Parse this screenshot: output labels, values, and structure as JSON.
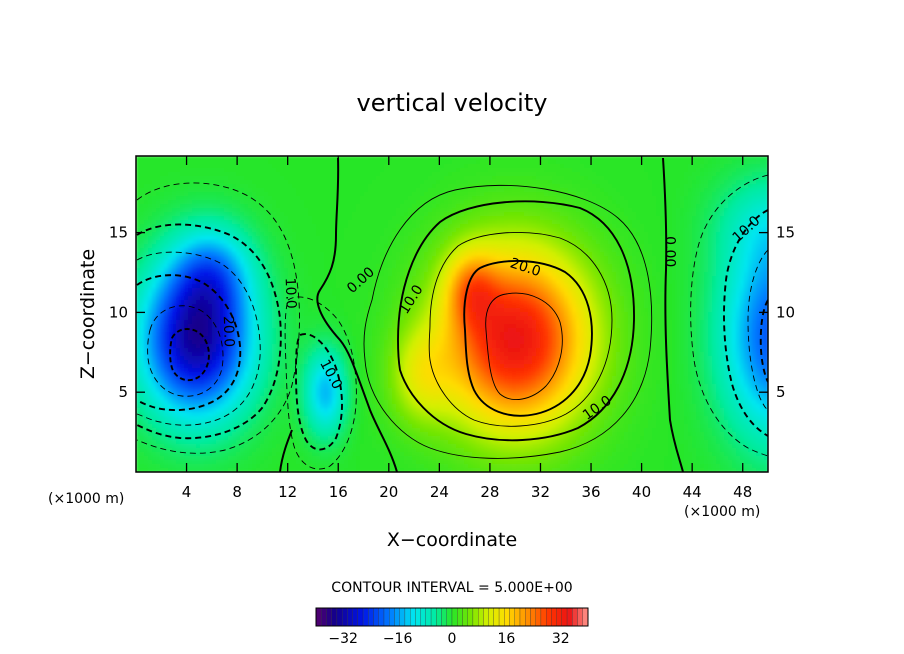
{
  "chart_data": {
    "type": "heatmap",
    "title": "vertical velocity",
    "xlabel": "X−coordinate",
    "ylabel": "Z−coordinate",
    "x_unit": "(×1000 m)",
    "y_unit": "(×1000 m)",
    "xlim": [
      0,
      50
    ],
    "ylim": [
      0,
      19.8
    ],
    "x_ticks": [
      4,
      8,
      12,
      16,
      20,
      24,
      28,
      32,
      36,
      40,
      44,
      48
    ],
    "y_ticks": [
      5,
      10,
      15
    ],
    "contour_interval_text": "CONTOUR INTERVAL = 5.000E+00",
    "contour_interval": 5,
    "colorbar": {
      "min": -40,
      "max": 40,
      "ticks": [
        -32,
        -16,
        0,
        16,
        32
      ],
      "tick_labels": [
        "−32",
        "−16",
        "0",
        "16",
        "32"
      ]
    },
    "contour_labels": [
      {
        "text": "0.00",
        "x": 17.8,
        "y": 12.0,
        "angle": -42
      },
      {
        "text": "0.00",
        "x": 42.2,
        "y": 13.8,
        "angle": 90
      },
      {
        "text": "10.0",
        "x": 21.8,
        "y": 10.8,
        "angle": -58
      },
      {
        "text": "20.0",
        "x": 30.8,
        "y": 12.8,
        "angle": 18
      },
      {
        "text": "10.0",
        "x": 36.5,
        "y": 4.0,
        "angle": -35
      },
      {
        "text": "10.0",
        "x": 12.2,
        "y": 11.2,
        "angle": 88
      },
      {
        "text": "20.0",
        "x": 7.3,
        "y": 8.8,
        "angle": 88
      },
      {
        "text": "10.0",
        "x": 15.4,
        "y": 6.1,
        "angle": 62
      },
      {
        "text": "10.0",
        "x": 48.3,
        "y": 15.2,
        "angle": -42
      }
    ],
    "field_centers": [
      {
        "kind": "updraft",
        "x": 30.0,
        "y": 8.3,
        "peak": 34
      },
      {
        "kind": "updraft-lobe",
        "x": 26.5,
        "y": 11.0,
        "peak": 15
      },
      {
        "kind": "downdraft",
        "x": 5.0,
        "y": 8.3,
        "peak": -35
      },
      {
        "kind": "downdraft-lobe",
        "x": 6.0,
        "y": 12.0,
        "peak": -12
      },
      {
        "kind": "downdraft",
        "x": 15.0,
        "y": 5.0,
        "peak": -16
      },
      {
        "kind": "downdraft",
        "x": 50.0,
        "y": 8.5,
        "peak": -24
      }
    ]
  }
}
